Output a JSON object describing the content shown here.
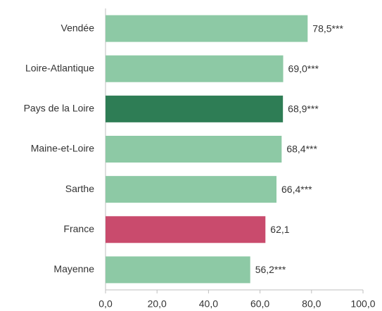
{
  "chart_data": {
    "type": "barh",
    "categories": [
      "Vendée",
      "Loire-Atlantique",
      "Pays de la Loire",
      "Maine-et-Loire",
      "Sarthe",
      "France",
      "Mayenne"
    ],
    "values": [
      78.5,
      69.0,
      68.9,
      68.4,
      66.4,
      62.1,
      56.2
    ],
    "value_labels": [
      "78,5***",
      "69,0***",
      "68,9***",
      "68,4***",
      "66,4***",
      "62,1",
      "56,2***"
    ],
    "colors": [
      "#8dc9a5",
      "#8dc9a5",
      "#2e7d55",
      "#8dc9a5",
      "#8dc9a5",
      "#c94b6d",
      "#8dc9a5"
    ],
    "xlim": [
      0,
      100
    ],
    "xticks": [
      {
        "value": 0,
        "label": "0,0"
      },
      {
        "value": 20,
        "label": "20,0"
      },
      {
        "value": 40,
        "label": "40,0"
      },
      {
        "value": 60,
        "label": "60,0"
      },
      {
        "value": 80,
        "label": "80,0"
      },
      {
        "value": 100,
        "label": "100,0"
      }
    ]
  }
}
